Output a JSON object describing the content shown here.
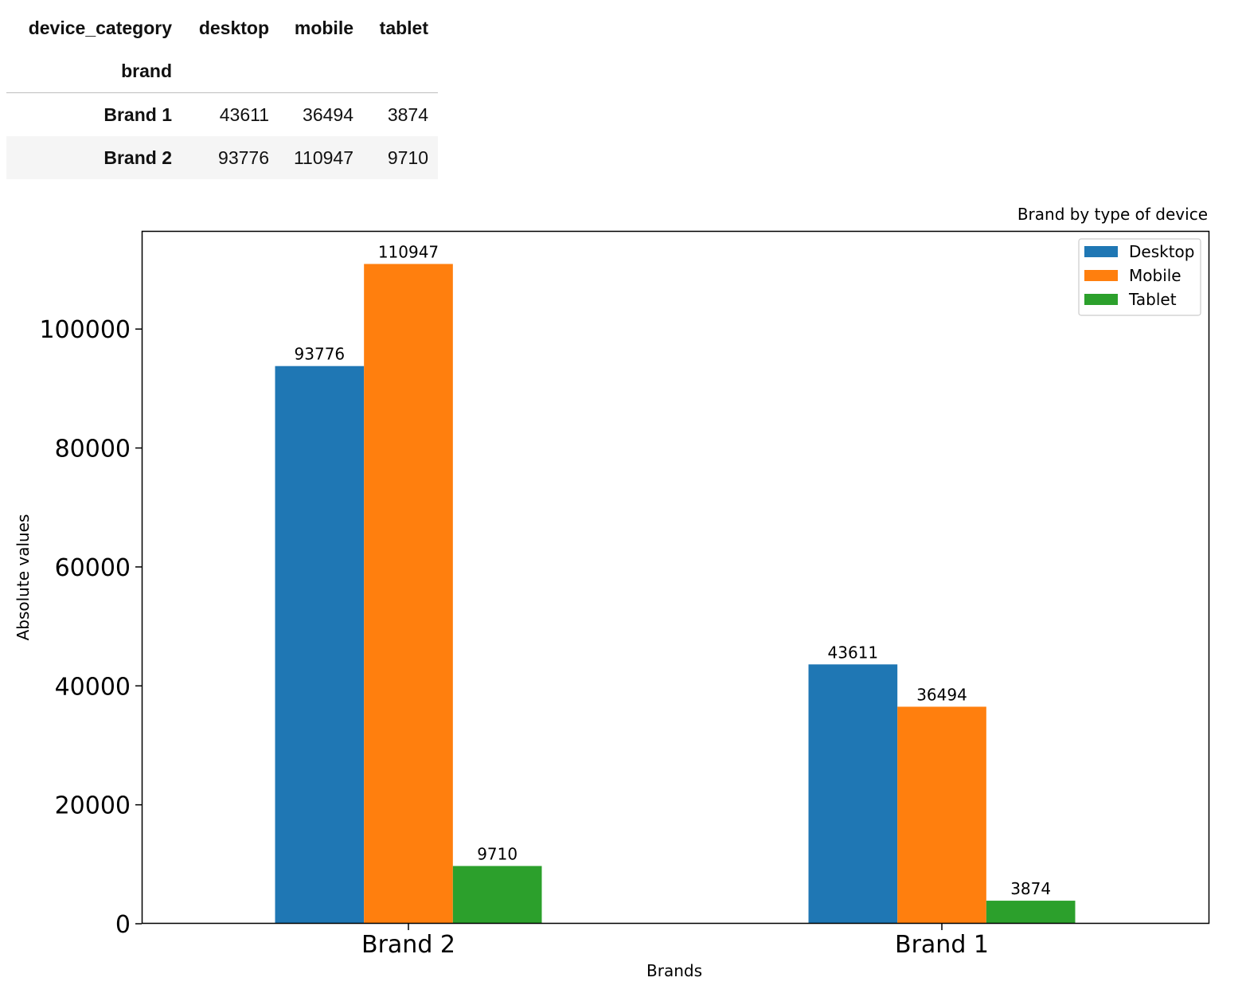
{
  "table": {
    "index_name": "device_category",
    "columns": [
      "desktop",
      "mobile",
      "tablet"
    ],
    "row_index_label": "brand",
    "rows": [
      {
        "label": "Brand 1",
        "values": [
          "43611",
          "36494",
          "3874"
        ]
      },
      {
        "label": "Brand 2",
        "values": [
          "93776",
          "110947",
          "9710"
        ]
      }
    ]
  },
  "chart_data": {
    "type": "bar",
    "title": "Brand by type of device",
    "xlabel": "Brands",
    "ylabel": "Absolute values",
    "categories": [
      "Brand 2",
      "Brand 1"
    ],
    "series": [
      {
        "name": "Desktop",
        "values": [
          93776,
          43611
        ],
        "color": "#1f77b4"
      },
      {
        "name": "Mobile",
        "values": [
          110947,
          36494
        ],
        "color": "#ff7f0e"
      },
      {
        "name": "Tablet",
        "values": [
          9710,
          3874
        ],
        "color": "#2ca02c"
      }
    ],
    "ylim": [
      0,
      116500
    ],
    "yticks": [
      0,
      20000,
      40000,
      60000,
      80000,
      100000
    ],
    "legend_position": "top-right",
    "grid": false
  }
}
